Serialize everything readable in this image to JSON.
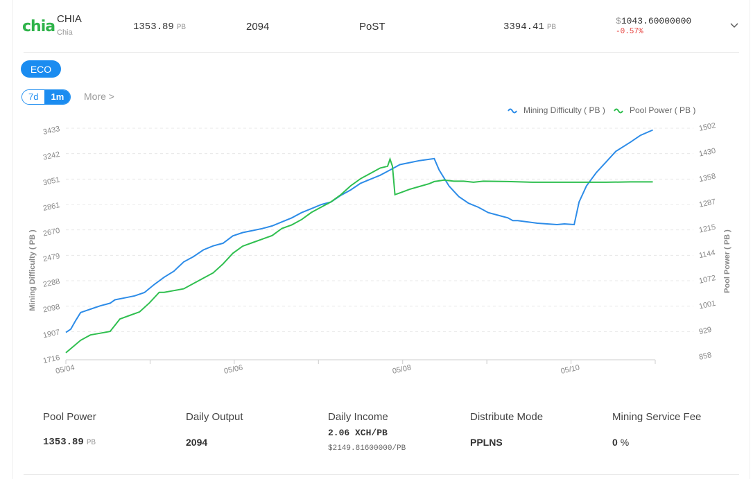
{
  "header": {
    "logo_text": "chia",
    "coin_name": "CHIA",
    "coin_sub": "Chia",
    "pool_power": "1353.89",
    "pool_power_unit": "PB",
    "daily_output": "2094",
    "mode": "PoST",
    "network_power": "3394.41",
    "network_power_unit": "PB",
    "price_currency": "$",
    "price": "1043.60000000",
    "change": "-0.57%",
    "chevron_icon": "chevron-down-icon"
  },
  "controls": {
    "eco_label": "ECO",
    "range_7d": "7d",
    "range_1m": "1m",
    "more_label": "More >"
  },
  "chart_data": {
    "type": "line",
    "x_ticks": [
      "05/04",
      "05/06",
      "05/08",
      "05/10"
    ],
    "legend": [
      "Mining Difficulty ( PB )",
      "Pool Power ( PB )"
    ],
    "legend_position": "top-right",
    "y_left_label": "Mining Difficulty ( PB )",
    "y_right_label": "Pool Power ( PB )",
    "y_left_ticks": [
      "1716",
      "1907",
      "2098",
      "2288",
      "2479",
      "2670",
      "2861",
      "3051",
      "3242",
      "3433"
    ],
    "y_right_ticks": [
      "858",
      "929",
      "1001",
      "1072",
      "1144",
      "1215",
      "1287",
      "1358",
      "1430",
      "1502"
    ],
    "y_left_range": [
      1716,
      3433
    ],
    "y_right_range": [
      858,
      1502
    ],
    "x_range_days": [
      0,
      7
    ],
    "grid": "horizontal dashed",
    "colors": {
      "difficulty": "#2d8ce8",
      "pool_power": "#2fbf4f"
    },
    "series": [
      {
        "name": "Mining Difficulty ( PB )",
        "points": [
          [
            0,
            1900
          ],
          [
            0.1,
            1925
          ],
          [
            0.2,
            1990
          ],
          [
            0.3,
            2050
          ],
          [
            0.5,
            2075
          ],
          [
            0.7,
            2100
          ],
          [
            0.9,
            2120
          ],
          [
            1.0,
            2145
          ],
          [
            1.2,
            2160
          ],
          [
            1.4,
            2175
          ],
          [
            1.6,
            2200
          ],
          [
            1.8,
            2260
          ],
          [
            2.0,
            2315
          ],
          [
            2.2,
            2360
          ],
          [
            2.4,
            2430
          ],
          [
            2.6,
            2470
          ],
          [
            2.8,
            2520
          ],
          [
            3.0,
            2550
          ],
          [
            3.2,
            2570
          ],
          [
            3.4,
            2625
          ],
          [
            3.6,
            2650
          ],
          [
            3.8,
            2665
          ],
          [
            4.0,
            2680
          ],
          [
            4.2,
            2700
          ],
          [
            4.4,
            2730
          ],
          [
            4.6,
            2760
          ],
          [
            4.8,
            2800
          ],
          [
            5.0,
            2830
          ],
          [
            5.2,
            2860
          ],
          [
            5.4,
            2880
          ],
          [
            5.6,
            2930
          ],
          [
            5.8,
            2970
          ],
          [
            6.0,
            3020
          ],
          [
            6.2,
            3050
          ],
          [
            6.4,
            3080
          ],
          [
            6.6,
            3120
          ],
          [
            6.8,
            3160
          ],
          [
            7.0,
            3175
          ],
          [
            7.2,
            3190
          ],
          [
            7.4,
            3200
          ],
          [
            7.5,
            3205
          ],
          [
            7.6,
            3120
          ],
          [
            7.8,
            3000
          ],
          [
            7.9,
            2960
          ],
          [
            8.0,
            2920
          ],
          [
            8.2,
            2870
          ],
          [
            8.4,
            2840
          ],
          [
            8.6,
            2800
          ],
          [
            8.8,
            2780
          ],
          [
            9.0,
            2760
          ],
          [
            9.1,
            2740
          ],
          [
            9.2,
            2740
          ],
          [
            9.4,
            2730
          ],
          [
            9.6,
            2720
          ],
          [
            9.8,
            2715
          ],
          [
            10.0,
            2710
          ],
          [
            10.15,
            2715
          ],
          [
            10.35,
            2710
          ],
          [
            10.45,
            2880
          ],
          [
            10.6,
            3000
          ],
          [
            10.8,
            3100
          ],
          [
            11.0,
            3180
          ],
          [
            11.2,
            3260
          ],
          [
            11.5,
            3330
          ],
          [
            11.7,
            3380
          ],
          [
            11.95,
            3420
          ]
        ]
      },
      {
        "name": "Pool Power ( PB )",
        "points": [
          [
            0,
            870
          ],
          [
            0.3,
            905
          ],
          [
            0.5,
            920
          ],
          [
            0.7,
            925
          ],
          [
            0.9,
            930
          ],
          [
            1.1,
            965
          ],
          [
            1.3,
            975
          ],
          [
            1.5,
            985
          ],
          [
            1.7,
            1010
          ],
          [
            1.9,
            1040
          ],
          [
            2.0,
            1040
          ],
          [
            2.2,
            1045
          ],
          [
            2.4,
            1050
          ],
          [
            2.6,
            1065
          ],
          [
            2.8,
            1080
          ],
          [
            3.0,
            1095
          ],
          [
            3.2,
            1120
          ],
          [
            3.4,
            1150
          ],
          [
            3.6,
            1170
          ],
          [
            3.8,
            1180
          ],
          [
            4.0,
            1190
          ],
          [
            4.2,
            1200
          ],
          [
            4.4,
            1220
          ],
          [
            4.6,
            1230
          ],
          [
            4.8,
            1245
          ],
          [
            5.0,
            1265
          ],
          [
            5.2,
            1280
          ],
          [
            5.4,
            1295
          ],
          [
            5.6,
            1315
          ],
          [
            5.8,
            1340
          ],
          [
            6.0,
            1360
          ],
          [
            6.2,
            1375
          ],
          [
            6.4,
            1390
          ],
          [
            6.55,
            1395
          ],
          [
            6.6,
            1415
          ],
          [
            6.65,
            1395
          ],
          [
            6.7,
            1315
          ],
          [
            6.8,
            1320
          ],
          [
            7.0,
            1330
          ],
          [
            7.2,
            1338
          ],
          [
            7.4,
            1346
          ],
          [
            7.5,
            1352
          ],
          [
            7.7,
            1356
          ],
          [
            7.9,
            1353
          ],
          [
            8.1,
            1353
          ],
          [
            8.3,
            1350
          ],
          [
            8.5,
            1353
          ],
          [
            9.0,
            1352
          ],
          [
            9.5,
            1350
          ],
          [
            10.0,
            1350
          ],
          [
            10.5,
            1350
          ],
          [
            11.0,
            1350
          ],
          [
            11.5,
            1351
          ],
          [
            11.95,
            1351
          ]
        ]
      }
    ]
  },
  "stats": {
    "labels": [
      "Pool Power",
      "Daily Output",
      "Daily Income",
      "Distribute Mode",
      "Mining Service Fee"
    ],
    "pool_power": "1353.89",
    "pool_power_unit": "PB",
    "daily_output": "2094",
    "income_line1": "2.06 XCH/PB",
    "income_line2": "$2149.81600000/PB",
    "distribute_mode": "PPLNS",
    "fee": "0",
    "fee_unit": "%"
  }
}
